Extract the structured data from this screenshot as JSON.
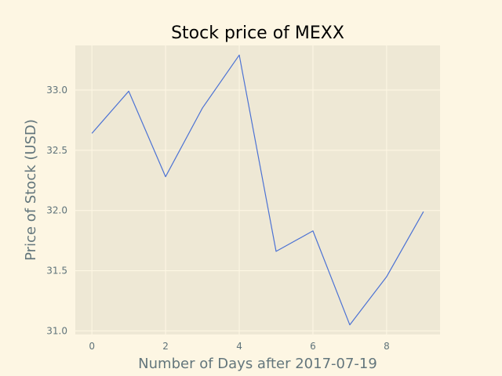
{
  "chart_data": {
    "type": "line",
    "title": "Stock price of MEXX",
    "xlabel": "Number of Days after 2017-07-19",
    "ylabel": "Price of Stock (USD)",
    "x": [
      0,
      1,
      2,
      3,
      4,
      5,
      6,
      7,
      8,
      9
    ],
    "series": [
      {
        "values": [
          32.64,
          32.99,
          32.28,
          32.85,
          33.29,
          31.66,
          31.83,
          31.05,
          31.45,
          31.99
        ]
      }
    ],
    "xlim": [
      -0.45,
      9.45
    ],
    "ylim": [
      30.97,
      33.37
    ],
    "xticks": [
      0,
      2,
      4,
      6,
      8
    ],
    "yticks": [
      31.0,
      31.5,
      32.0,
      32.5,
      33.0
    ],
    "xtick_labels": [
      "0",
      "2",
      "4",
      "6",
      "8"
    ],
    "ytick_labels": [
      "31.0",
      "31.5",
      "32.0",
      "32.5",
      "33.0"
    ],
    "grid": true,
    "colors": {
      "figure_background": "#fdf6e3",
      "plot_background": "#eee8d5",
      "grid": "#fdf6e3",
      "line": "#4c72d4",
      "tick_text": "#5f737a",
      "axis_label_text": "#63767c",
      "title_text": "#000000"
    }
  }
}
